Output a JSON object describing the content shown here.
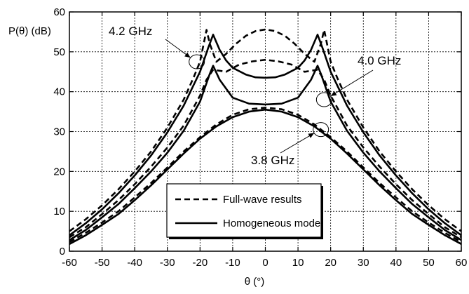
{
  "chart_data": {
    "type": "line",
    "xlabel": "θ (°)",
    "ylabel": "P(θ) (dB)",
    "xlim": [
      -60,
      60
    ],
    "ylim": [
      0,
      60
    ],
    "xticks": [
      -60,
      -50,
      -40,
      -30,
      -20,
      -10,
      0,
      10,
      20,
      30,
      40,
      50,
      60
    ],
    "yticks": [
      0,
      10,
      20,
      30,
      40,
      50,
      60
    ],
    "grid": true,
    "legend": {
      "placement": "bottom-center",
      "entries": [
        {
          "label": "Full-wave results",
          "style": "dashed"
        },
        {
          "label": "Homogeneous model",
          "style": "solid"
        }
      ]
    },
    "annotations": [
      {
        "text": "4.2 GHz",
        "target": [
          -21,
          47.5
        ]
      },
      {
        "text": "4.0 GHz",
        "target": [
          18,
          38
        ]
      },
      {
        "text": "3.8 GHz",
        "target": [
          17,
          30.5
        ]
      }
    ],
    "series": [
      {
        "frequency": "3.8 GHz",
        "style": "solid",
        "x": [
          -60,
          -55,
          -50,
          -45,
          -40,
          -35,
          -30,
          -25,
          -20,
          -15,
          -10,
          -5,
          0,
          5,
          10,
          15,
          20,
          25,
          30,
          35,
          40,
          45,
          50,
          55,
          60
        ],
        "y": [
          1.8,
          4.0,
          6.6,
          9.3,
          12.8,
          16.5,
          20.5,
          24.5,
          28.2,
          31.3,
          33.6,
          35.0,
          35.5,
          35.0,
          33.6,
          31.3,
          28.2,
          24.5,
          20.5,
          16.5,
          12.8,
          9.3,
          6.6,
          4.0,
          1.8
        ]
      },
      {
        "frequency": "3.8 GHz",
        "style": "dashed",
        "x": [
          -60,
          -55,
          -50,
          -45,
          -40,
          -35,
          -30,
          -25,
          -20,
          -15,
          -10,
          -5,
          0,
          5,
          10,
          15,
          20,
          25,
          30,
          35,
          40,
          45,
          50,
          55,
          60
        ],
        "y": [
          2.3,
          4.6,
          7.2,
          10.0,
          13.5,
          17.1,
          21.0,
          25.0,
          28.6,
          31.8,
          34.2,
          35.6,
          36.0,
          35.6,
          34.2,
          31.8,
          28.6,
          25.0,
          21.0,
          17.1,
          13.5,
          10.0,
          7.2,
          4.6,
          2.3
        ]
      },
      {
        "frequency": "4.0 GHz",
        "style": "solid",
        "x": [
          -60,
          -55,
          -50,
          -45,
          -40,
          -35,
          -30,
          -25,
          -20,
          -17,
          -16,
          -14,
          -10,
          -5,
          0,
          5,
          10,
          14,
          16,
          17,
          20,
          25,
          30,
          35,
          40,
          45,
          50,
          55,
          60
        ],
        "y": [
          2.8,
          5.3,
          8.5,
          11.8,
          15.8,
          20.0,
          24.7,
          30.2,
          37.5,
          44.5,
          46.5,
          43.0,
          38.5,
          37.0,
          36.8,
          37.0,
          38.5,
          43.0,
          46.5,
          44.5,
          37.5,
          30.2,
          24.7,
          20.0,
          15.8,
          11.8,
          8.5,
          5.3,
          2.8
        ]
      },
      {
        "frequency": "4.0 GHz",
        "style": "dashed",
        "x": [
          -60,
          -55,
          -50,
          -45,
          -40,
          -35,
          -30,
          -25,
          -20,
          -18,
          -16,
          -12,
          -8,
          -4,
          0,
          4,
          8,
          12,
          16,
          18,
          20,
          25,
          30,
          35,
          40,
          45,
          50,
          55,
          60
        ],
        "y": [
          3.5,
          6.0,
          9.3,
          12.8,
          16.8,
          21.2,
          26.0,
          31.5,
          39.0,
          43.0,
          45.5,
          45.0,
          46.8,
          47.6,
          48.0,
          47.6,
          46.8,
          45.0,
          45.5,
          43.0,
          39.0,
          31.5,
          26.0,
          21.2,
          16.8,
          12.8,
          9.3,
          6.0,
          3.5
        ]
      },
      {
        "frequency": "4.2 GHz",
        "style": "solid",
        "x": [
          -60,
          -55,
          -50,
          -45,
          -40,
          -35,
          -30,
          -25,
          -20,
          -17.5,
          -16,
          -14,
          -12,
          -10,
          -6,
          -3,
          0,
          3,
          6,
          10,
          12,
          14,
          16,
          17.5,
          20,
          25,
          30,
          35,
          40,
          45,
          50,
          55,
          60
        ],
        "y": [
          4.0,
          7.0,
          10.5,
          14.5,
          19.0,
          24.0,
          29.8,
          36.5,
          45.0,
          51.0,
          54.3,
          50.5,
          47.8,
          46.0,
          44.3,
          43.6,
          43.5,
          43.6,
          44.3,
          46.0,
          47.8,
          50.5,
          54.3,
          51.0,
          45.0,
          36.5,
          29.8,
          24.0,
          19.0,
          14.5,
          10.5,
          7.0,
          4.0
        ]
      },
      {
        "frequency": "4.2 GHz",
        "style": "dashed",
        "x": [
          -60,
          -55,
          -50,
          -45,
          -40,
          -35,
          -30,
          -25,
          -22,
          -20,
          -18,
          -17,
          -15,
          -12,
          -9,
          -6,
          -3,
          0,
          3,
          6,
          9,
          12,
          15,
          17,
          18,
          20,
          22,
          25,
          30,
          35,
          40,
          45,
          50,
          55,
          60
        ],
        "y": [
          5.0,
          8.0,
          11.5,
          15.5,
          20.0,
          25.0,
          31.0,
          38.0,
          43.5,
          47.5,
          55.5,
          52.0,
          47.5,
          49.5,
          52.0,
          54.0,
          55.2,
          55.6,
          55.2,
          54.0,
          52.0,
          49.5,
          47.5,
          52.0,
          55.5,
          47.5,
          43.5,
          38.0,
          31.0,
          25.0,
          20.0,
          15.5,
          11.5,
          8.0,
          5.0
        ]
      }
    ]
  }
}
